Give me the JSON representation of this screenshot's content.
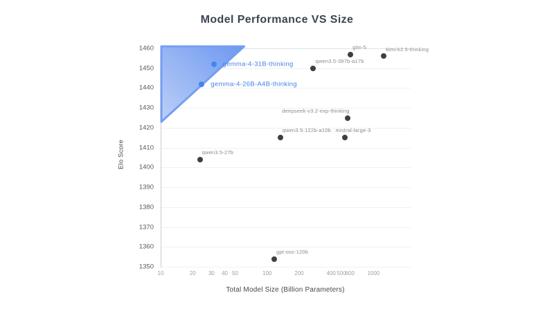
{
  "colors": {
    "background": "#ffffff",
    "accent_blue": "#4285f4",
    "accent_blue_label": "#4a80e8",
    "dot_gray": "#3c4043",
    "gray_label": "#84898e",
    "region_fill_light": "#b7ccf8",
    "region_fill_dark": "#6190ef",
    "region_stroke": "#6a96f0"
  },
  "chart_data": {
    "type": "scatter",
    "title": "Model Performance VS Size",
    "xlabel": "Total Model Size (Billion Parameters)",
    "ylabel": "Elo Score",
    "x_scale": "log",
    "xlim": [
      10,
      2200
    ],
    "ylim": [
      1350,
      1460
    ],
    "x_ticks": [
      10,
      20,
      30,
      40,
      50,
      100,
      200,
      400,
      500,
      600,
      1000
    ],
    "y_ticks": [
      1460,
      1450,
      1440,
      1430,
      1420,
      1410,
      1400,
      1390,
      1380,
      1370,
      1360,
      1350
    ],
    "grid": "horizontal",
    "legend": "none",
    "highlight_region": {
      "shape": "triangle",
      "vertices": [
        [
          10,
          1461
        ],
        [
          60,
          1461
        ],
        [
          10,
          1423
        ]
      ]
    },
    "series": [
      {
        "name": "highlighted-models",
        "color": "#4285f4",
        "points": [
          {
            "label": "gemma-4-31B-thinking",
            "x": 31,
            "y": 1452,
            "label_pos": "right"
          },
          {
            "label": "gemma-4-26B-A4B-thinking",
            "x": 24,
            "y": 1442,
            "label_pos": "right"
          }
        ]
      },
      {
        "name": "baseline-models",
        "color": "#3c4043",
        "points": [
          {
            "label": "qwen3.5-27b",
            "x": 23,
            "y": 1404,
            "label_pos": "above-right"
          },
          {
            "label": "gpt-oss-120b",
            "x": 115,
            "y": 1354,
            "label_pos": "above-right"
          },
          {
            "label": "qwen3.5-122b-a10b",
            "x": 131,
            "y": 1415,
            "label_pos": "above-right"
          },
          {
            "label": "mistral-large-3",
            "x": 530,
            "y": 1415,
            "label_pos": "above-center"
          },
          {
            "label": "deepseek-v3.2-exp-thinking",
            "x": 560,
            "y": 1425,
            "label_pos": "above-left"
          },
          {
            "label": "qwen3.5-397b-a17b",
            "x": 268,
            "y": 1450,
            "label_pos": "above-right"
          },
          {
            "label": "glm-5",
            "x": 600,
            "y": 1457,
            "label_pos": "above-right"
          },
          {
            "label": "kimi-k2.5-thinking",
            "x": 1230,
            "y": 1456,
            "label_pos": "above-right"
          }
        ]
      }
    ]
  }
}
